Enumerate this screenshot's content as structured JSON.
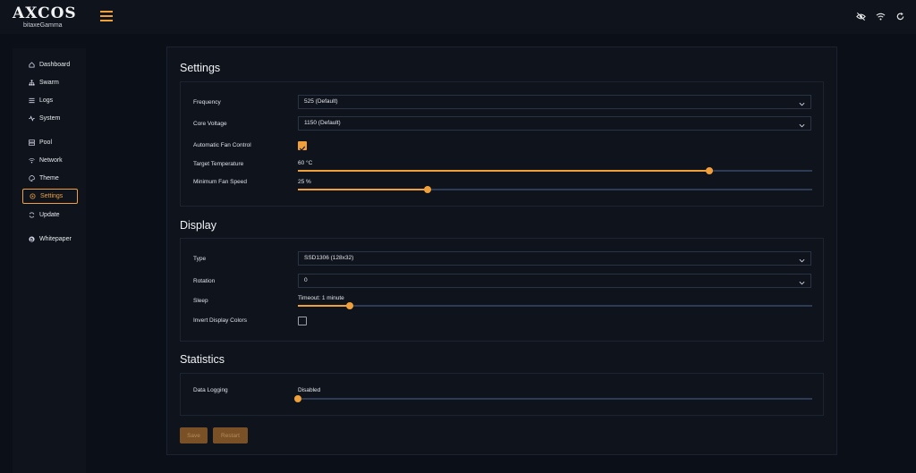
{
  "app": {
    "logo": "AXCOS",
    "subtitle": "bitaxeGamma"
  },
  "header_icons": [
    "eye-off-icon",
    "wifi-icon",
    "refresh-icon"
  ],
  "sidebar": {
    "items": [
      {
        "label": "Dashboard",
        "icon": "home-icon"
      },
      {
        "label": "Swarm",
        "icon": "sitemap-icon"
      },
      {
        "label": "Logs",
        "icon": "list-icon"
      },
      {
        "label": "System",
        "icon": "pulse-icon"
      },
      {
        "label": "Pool",
        "icon": "server-icon"
      },
      {
        "label": "Network",
        "icon": "wifi-icon"
      },
      {
        "label": "Theme",
        "icon": "palette-icon"
      },
      {
        "label": "Settings",
        "icon": "gear-icon",
        "active": true
      },
      {
        "label": "Update",
        "icon": "refresh-icon"
      },
      {
        "label": "Whitepaper",
        "icon": "bitcoin-icon"
      }
    ]
  },
  "settings": {
    "title": "Settings",
    "frequency_label": "Frequency",
    "frequency_value": "525 (Default)",
    "core_voltage_label": "Core Voltage",
    "core_voltage_value": "1150 (Default)",
    "fan_control_label": "Automatic Fan Control",
    "fan_control_checked": true,
    "target_temp_label": "Target Temperature",
    "target_temp_value": "60 °C",
    "target_temp_fraction": 0.8,
    "min_fan_label": "Minimum Fan Speed",
    "min_fan_value": "25 %",
    "min_fan_fraction": 0.253
  },
  "display": {
    "title": "Display",
    "type_label": "Type",
    "type_value": "SSD1306 (128x32)",
    "rotation_label": "Rotation",
    "rotation_value": "0",
    "sleep_label": "Sleep",
    "sleep_value": "Timeout: 1 minute",
    "sleep_fraction": 0.1,
    "invert_label": "Invert Display Colors",
    "invert_checked": false
  },
  "statistics": {
    "title": "Statistics",
    "logging_label": "Data Logging",
    "logging_value": "Disabled",
    "logging_fraction": 0
  },
  "actions": {
    "save_label": "Save",
    "restart_label": "Restart"
  },
  "colors": {
    "accent": "#f0a03a",
    "background": "#0b0f17",
    "panel": "#0e131c",
    "track": "#2d3b54"
  }
}
